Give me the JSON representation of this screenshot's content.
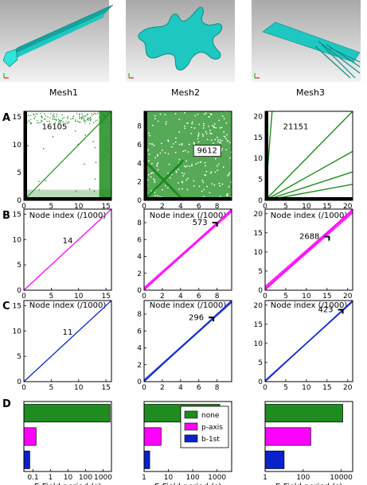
{
  "meshes": [
    {
      "title": "Mesh1"
    },
    {
      "title": "Mesh2"
    },
    {
      "title": "Mesh3"
    }
  ],
  "panel_labels": [
    "A",
    "B",
    "C",
    "D"
  ],
  "colors": {
    "green": "#1e8c1e",
    "magenta": "#ff00ff",
    "blue": "#0a22cc",
    "teal_mesh": "#1ec8c0"
  },
  "chart_data": [
    {
      "type": "scatter",
      "row": "A",
      "mesh": "Mesh1",
      "xlabel": "Node index (/1000)",
      "xlim": [
        0,
        16
      ],
      "ylim": [
        0,
        16
      ],
      "xticks": [
        0,
        5,
        10,
        15
      ],
      "yticks": [
        0,
        5,
        10,
        15
      ],
      "annotation": "16105",
      "color": "green",
      "pattern": "diag_band_edges"
    },
    {
      "type": "scatter",
      "row": "A",
      "mesh": "Mesh2",
      "xlabel": "Node index (/1000)",
      "xlim": [
        0,
        9.6
      ],
      "ylim": [
        0,
        9.6
      ],
      "xticks": [
        0,
        2,
        4,
        6,
        8
      ],
      "yticks": [
        0,
        2,
        4,
        6,
        8
      ],
      "annotation": "9612",
      "color": "green",
      "pattern": "dense_cross"
    },
    {
      "type": "scatter",
      "row": "A",
      "mesh": "Mesh3",
      "xlabel": "Node index (/1000)",
      "xlim": [
        0,
        21.2
      ],
      "ylim": [
        0,
        21.2
      ],
      "xticks": [
        0,
        5,
        10,
        15,
        20
      ],
      "yticks": [
        0,
        5,
        10,
        15,
        20
      ],
      "annotation": "21151",
      "color": "green",
      "pattern": "fan_lines"
    },
    {
      "type": "scatter",
      "row": "B",
      "mesh": "Mesh1",
      "xlabel": "Node index (/1000)",
      "xlim": [
        0,
        16
      ],
      "ylim": [
        0,
        16
      ],
      "xticks": [
        0,
        5,
        10,
        15
      ],
      "yticks": [
        0,
        5,
        10,
        15
      ],
      "annotation": "14",
      "color": "magenta",
      "bandwidth": 0.05
    },
    {
      "type": "scatter",
      "row": "B",
      "mesh": "Mesh2",
      "xlabel": "Node index (/1000)",
      "xlim": [
        0,
        9.6
      ],
      "ylim": [
        0,
        9.6
      ],
      "xticks": [
        0,
        2,
        4,
        6,
        8
      ],
      "yticks": [
        0,
        2,
        4,
        6,
        8
      ],
      "annotation": "573",
      "color": "magenta",
      "bandwidth": 0.4,
      "marker": [
        8.0,
        8.0
      ]
    },
    {
      "type": "scatter",
      "row": "B",
      "mesh": "Mesh3",
      "xlabel": "Node index (/1000)",
      "xlim": [
        0,
        21.2
      ],
      "ylim": [
        0,
        21.2
      ],
      "xticks": [
        0,
        5,
        10,
        15,
        20
      ],
      "yticks": [
        0,
        5,
        10,
        15,
        20
      ],
      "annotation": "2688",
      "color": "magenta",
      "bandwidth": 1.2,
      "marker": [
        15.5,
        14.0
      ]
    },
    {
      "type": "scatter",
      "row": "C",
      "mesh": "Mesh1",
      "xlabel": "",
      "xlim": [
        0,
        16
      ],
      "ylim": [
        0,
        16
      ],
      "xticks": [
        0,
        5,
        10,
        15
      ],
      "yticks": [
        0,
        5,
        10,
        15
      ],
      "annotation": "11",
      "color": "blue",
      "bandwidth": 0.04
    },
    {
      "type": "scatter",
      "row": "C",
      "mesh": "Mesh2",
      "xlabel": "",
      "xlim": [
        0,
        9.6
      ],
      "ylim": [
        0,
        9.6
      ],
      "xticks": [
        0,
        2,
        4,
        6,
        8
      ],
      "yticks": [
        0,
        2,
        4,
        6,
        8
      ],
      "annotation": "296",
      "color": "blue",
      "bandwidth": 0.3,
      "marker": [
        7.6,
        7.6
      ]
    },
    {
      "type": "scatter",
      "row": "C",
      "mesh": "Mesh3",
      "xlabel": "",
      "xlim": [
        0,
        21.2
      ],
      "ylim": [
        0,
        21.2
      ],
      "xticks": [
        0,
        5,
        10,
        15,
        20
      ],
      "yticks": [
        0,
        5,
        10,
        15,
        20
      ],
      "annotation": "423",
      "color": "blue",
      "bandwidth": 0.5,
      "marker": [
        18.8,
        18.8
      ]
    },
    {
      "type": "bar",
      "row": "D",
      "mesh": "Mesh1",
      "orientation": "horizontal",
      "scale": "log",
      "xlabel": "E-Field  period (s)",
      "xlim": [
        0.03,
        3000
      ],
      "xticks": [
        0.1,
        1,
        10,
        100,
        1000
      ],
      "xtick_labels": [
        "0.1",
        "1",
        "10",
        "100",
        "1000"
      ],
      "categories": [
        "none",
        "p-axis",
        "b-1st"
      ],
      "values": [
        2500,
        0.15,
        0.065
      ]
    },
    {
      "type": "bar",
      "row": "D",
      "mesh": "Mesh2",
      "orientation": "horizontal",
      "scale": "log",
      "xlabel": "E-Field period (s)",
      "xlim": [
        1,
        4000
      ],
      "xticks": [
        1,
        10,
        100,
        1000
      ],
      "xtick_labels": [
        "1",
        "10",
        "100",
        "1000"
      ],
      "categories": [
        "none",
        "p-axis",
        "b-1st"
      ],
      "values": [
        1300,
        5,
        1.7
      ],
      "legend": {
        "entries": [
          "none",
          "p-axis",
          "b-1st"
        ],
        "position": "upper-right"
      }
    },
    {
      "type": "bar",
      "row": "D",
      "mesh": "Mesh3",
      "orientation": "horizontal",
      "scale": "log",
      "xlabel": "E-Field period (s)",
      "xlim": [
        1,
        40000
      ],
      "xticks": [
        1,
        100,
        10000
      ],
      "xtick_labels": [
        "1",
        "100",
        "10000"
      ],
      "categories": [
        "none",
        "p-axis",
        "b-1st"
      ],
      "values": [
        12000,
        250,
        10
      ]
    }
  ]
}
